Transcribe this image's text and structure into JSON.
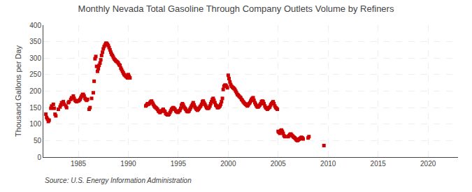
{
  "chart_data": {
    "type": "scatter",
    "title": "Monthly Nevada Total Gasoline Through Company Outlets Volume by Refiners",
    "ylabel": "Thousand Gallons per Day",
    "annotations": [
      "Source: U.S. Energy Information Administration"
    ],
    "color": "#cc0000",
    "marker": "square",
    "grid": true,
    "xlim": [
      1981.5,
      2023
    ],
    "ylim": [
      0,
      400
    ],
    "xticks": [
      1985,
      1990,
      1995,
      2000,
      2005,
      2010,
      2015,
      2020
    ],
    "yticks": [
      0,
      50,
      100,
      150,
      200,
      250,
      300,
      350,
      400
    ],
    "x": [
      1981.75,
      1981.83,
      1981.92,
      1982.0,
      1982.08,
      1982.25,
      1982.33,
      1982.5,
      1982.58,
      1982.67,
      1982.75,
      1983.0,
      1983.17,
      1983.25,
      1983.33,
      1983.5,
      1983.58,
      1983.75,
      1983.83,
      1984.0,
      1984.08,
      1984.25,
      1984.33,
      1984.5,
      1984.58,
      1984.67,
      1984.75,
      1984.83,
      1985.0,
      1985.08,
      1985.17,
      1985.25,
      1985.33,
      1985.42,
      1985.5,
      1985.58,
      1985.67,
      1985.75,
      1985.83,
      1985.92,
      1986.08,
      1986.17,
      1986.33,
      1986.5,
      1986.58,
      1986.67,
      1986.75,
      1986.83,
      1986.92,
      1987.0,
      1987.08,
      1987.17,
      1987.25,
      1987.33,
      1987.42,
      1987.5,
      1987.58,
      1987.67,
      1987.75,
      1987.83,
      1987.92,
      1988.0,
      1988.08,
      1988.17,
      1988.25,
      1988.33,
      1988.42,
      1988.5,
      1988.58,
      1988.67,
      1988.75,
      1988.83,
      1988.92,
      1989.0,
      1989.08,
      1989.17,
      1989.25,
      1989.33,
      1989.42,
      1989.5,
      1989.58,
      1989.67,
      1989.75,
      1989.83,
      1989.92,
      1990.0,
      1990.08,
      1990.17,
      1991.75,
      1991.83,
      1991.92,
      1992.0,
      1992.08,
      1992.17,
      1992.25,
      1992.33,
      1992.42,
      1992.5,
      1992.58,
      1992.67,
      1992.75,
      1992.83,
      1992.92,
      1993.0,
      1993.08,
      1993.17,
      1993.25,
      1993.33,
      1993.42,
      1993.5,
      1993.58,
      1993.67,
      1993.75,
      1993.83,
      1993.92,
      1994.0,
      1994.08,
      1994.17,
      1994.25,
      1994.33,
      1994.42,
      1994.5,
      1994.58,
      1994.67,
      1994.75,
      1994.83,
      1994.92,
      1995.0,
      1995.08,
      1995.17,
      1995.25,
      1995.33,
      1995.42,
      1995.5,
      1995.58,
      1995.67,
      1995.75,
      1995.83,
      1995.92,
      1996.0,
      1996.08,
      1996.17,
      1996.25,
      1996.33,
      1996.42,
      1996.5,
      1996.58,
      1996.67,
      1996.75,
      1996.83,
      1996.92,
      1997.0,
      1997.08,
      1997.17,
      1997.25,
      1997.33,
      1997.42,
      1997.5,
      1997.58,
      1997.67,
      1997.75,
      1997.83,
      1997.92,
      1998.0,
      1998.08,
      1998.17,
      1998.25,
      1998.33,
      1998.42,
      1998.5,
      1998.58,
      1998.67,
      1998.75,
      1998.83,
      1998.92,
      1999.0,
      1999.08,
      1999.17,
      1999.25,
      1999.33,
      1999.42,
      1999.5,
      1999.58,
      1999.67,
      1999.75,
      1999.83,
      1999.92,
      2000.0,
      2000.08,
      2000.17,
      2000.25,
      2000.33,
      2000.42,
      2000.5,
      2000.58,
      2000.67,
      2000.75,
      2000.83,
      2000.92,
      2001.0,
      2001.08,
      2001.17,
      2001.25,
      2001.33,
      2001.42,
      2001.5,
      2001.58,
      2001.67,
      2001.75,
      2001.83,
      2001.92,
      2002.0,
      2002.08,
      2002.17,
      2002.25,
      2002.33,
      2002.42,
      2002.5,
      2002.58,
      2002.67,
      2002.75,
      2002.83,
      2002.92,
      2003.0,
      2003.08,
      2003.17,
      2003.25,
      2003.33,
      2003.42,
      2003.5,
      2003.58,
      2003.67,
      2003.75,
      2003.83,
      2003.92,
      2004.0,
      2004.08,
      2004.17,
      2004.25,
      2004.33,
      2004.42,
      2004.5,
      2004.58,
      2004.67,
      2004.75,
      2004.83,
      2004.92,
      2005.0,
      2005.08,
      2005.17,
      2005.25,
      2005.33,
      2005.42,
      2005.5,
      2005.58,
      2005.67,
      2006.0,
      2006.08,
      2006.17,
      2006.25,
      2006.33,
      2006.42,
      2006.5,
      2006.58,
      2006.67,
      2006.75,
      2006.83,
      2006.92,
      2007.0,
      2007.08,
      2007.17,
      2007.25,
      2007.33,
      2007.42,
      2007.5,
      2008.0,
      2008.08,
      2009.58
    ],
    "values": [
      130,
      120,
      115,
      108,
      112,
      148,
      155,
      160,
      148,
      130,
      125,
      145,
      152,
      158,
      165,
      168,
      160,
      155,
      150,
      165,
      168,
      175,
      180,
      185,
      178,
      172,
      170,
      168,
      170,
      172,
      175,
      180,
      185,
      190,
      190,
      185,
      178,
      175,
      172,
      175,
      145,
      150,
      178,
      195,
      230,
      298,
      305,
      275,
      260,
      268,
      278,
      285,
      295,
      308,
      318,
      328,
      335,
      340,
      345,
      345,
      342,
      338,
      332,
      325,
      318,
      312,
      308,
      303,
      298,
      295,
      292,
      290,
      288,
      285,
      280,
      278,
      270,
      265,
      260,
      255,
      250,
      248,
      245,
      243,
      240,
      250,
      245,
      240,
      155,
      158,
      162,
      160,
      162,
      165,
      168,
      170,
      165,
      160,
      155,
      152,
      150,
      148,
      145,
      140,
      138,
      135,
      138,
      140,
      142,
      145,
      140,
      138,
      132,
      130,
      128,
      128,
      130,
      135,
      140,
      145,
      148,
      150,
      148,
      145,
      140,
      138,
      136,
      136,
      140,
      142,
      148,
      158,
      162,
      158,
      152,
      148,
      145,
      140,
      138,
      138,
      140,
      145,
      150,
      155,
      160,
      165,
      158,
      152,
      148,
      145,
      142,
      145,
      148,
      152,
      155,
      160,
      168,
      170,
      165,
      160,
      155,
      150,
      148,
      148,
      150,
      155,
      162,
      168,
      175,
      178,
      172,
      165,
      158,
      155,
      150,
      150,
      152,
      155,
      160,
      168,
      178,
      205,
      215,
      218,
      218,
      215,
      210,
      248,
      238,
      228,
      220,
      215,
      212,
      210,
      208,
      205,
      200,
      195,
      190,
      188,
      185,
      182,
      180,
      175,
      172,
      168,
      165,
      162,
      160,
      158,
      155,
      158,
      162,
      165,
      170,
      175,
      178,
      180,
      172,
      165,
      160,
      155,
      152,
      152,
      155,
      158,
      162,
      168,
      170,
      168,
      162,
      155,
      150,
      148,
      145,
      148,
      150,
      152,
      158,
      162,
      165,
      168,
      162,
      155,
      150,
      148,
      145,
      78,
      75,
      72,
      80,
      82,
      78,
      72,
      65,
      62,
      62,
      65,
      68,
      70,
      68,
      65,
      62,
      60,
      58,
      55,
      52,
      50,
      52,
      54,
      56,
      58,
      60,
      58,
      55,
      58,
      62,
      35
    ]
  }
}
